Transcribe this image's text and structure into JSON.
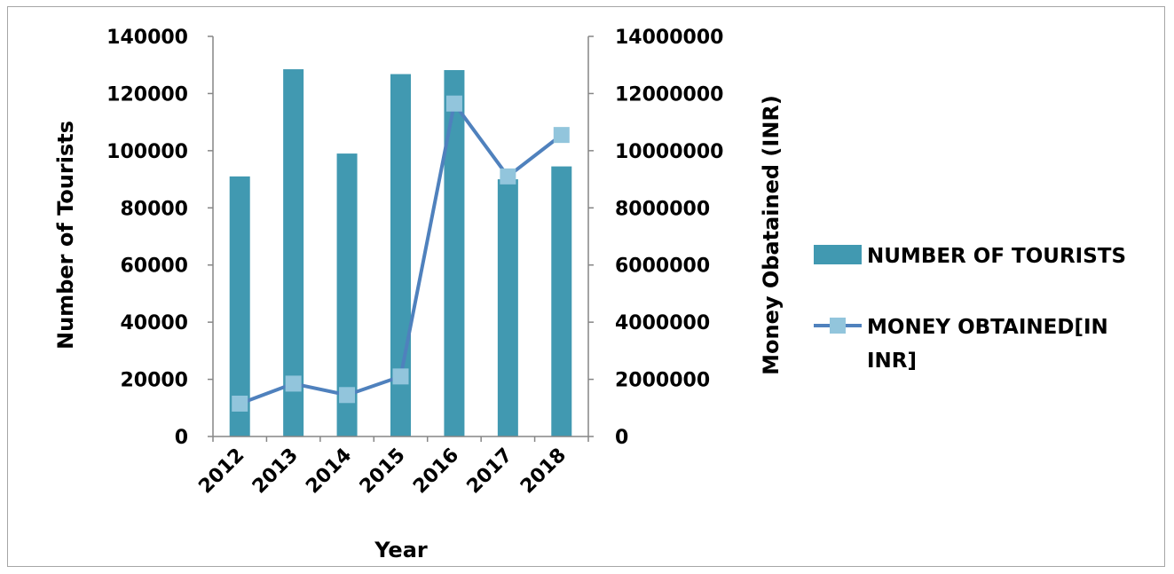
{
  "chart_data": {
    "type": "bar",
    "categories": [
      "2012",
      "2013",
      "2014",
      "2015",
      "2016",
      "2017",
      "2018"
    ],
    "series": [
      {
        "name": "NUMBER OF TOURISTS",
        "type": "bar",
        "axis": "left",
        "color": "#4199b1",
        "values": [
          91000,
          128500,
          99000,
          126800,
          128200,
          90000,
          94500
        ]
      },
      {
        "name": "MONEY OBTAINED[IN INR]",
        "legend_lines": [
          "MONEY OBTAINED[IN",
          "INR]"
        ],
        "type": "line",
        "axis": "right",
        "color": "#4f81bd",
        "marker_color": "#92c5dc",
        "marker": "square",
        "values": [
          1150000,
          1850000,
          1450000,
          2100000,
          11650000,
          9100000,
          10550000
        ]
      }
    ],
    "xlabel": "Year",
    "ylabel": "Number of Tourists",
    "y2label": "Money Obatained (INR)",
    "ylim": [
      0,
      140000
    ],
    "y2lim": [
      0,
      14000000
    ],
    "yticks": [
      "0",
      "20000",
      "40000",
      "60000",
      "80000",
      "100000",
      "120000",
      "140000"
    ],
    "y2ticks": [
      "0",
      "2000000",
      "4000000",
      "6000000",
      "8000000",
      "10000000",
      "12000000",
      "14000000"
    ],
    "grid": false,
    "legend_position": "right"
  }
}
